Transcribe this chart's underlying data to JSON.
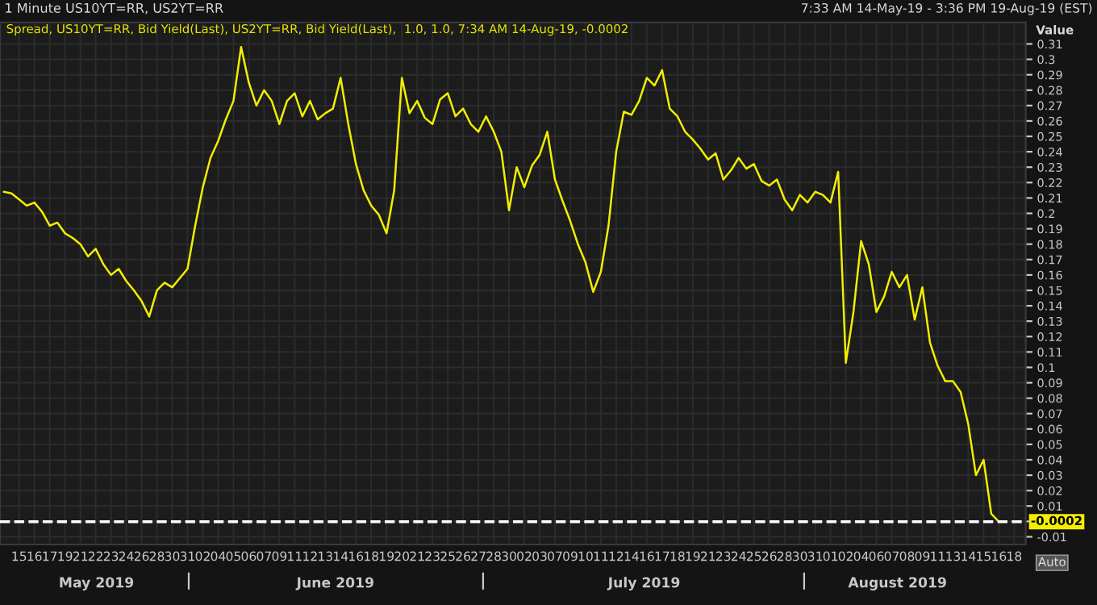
{
  "chart_data": {
    "type": "line",
    "title": "1 Minute US10YT=RR, US2YT=RR",
    "subtitle": "Spread, US10YT=RR, Bid Yield(Last), US2YT=RR, Bid Yield(Last),  1.0, 1.0, 7:34 AM 14-Aug-19, -0.0002",
    "ylabel": "Value",
    "annotations": [
      "7:33 AM 14-May-19 - 3:36 PM 19-Aug-19 (EST)",
      "Auto",
      "May 2019",
      "June 2019",
      "July 2019",
      "August 2019"
    ],
    "categories": [
      null,
      null,
      "15",
      null,
      "16",
      null,
      "17",
      null,
      "19",
      null,
      "21",
      null,
      "22",
      null,
      "23",
      null,
      "24",
      null,
      "26",
      null,
      "28",
      null,
      "30",
      null,
      "31",
      null,
      "02",
      null,
      "04",
      null,
      "05",
      null,
      "06",
      null,
      "07",
      null,
      "09",
      null,
      "11",
      null,
      "12",
      null,
      "13",
      null,
      "14",
      null,
      "16",
      null,
      "18",
      null,
      "19",
      null,
      "20",
      null,
      "21",
      null,
      "23",
      null,
      "25",
      null,
      "26",
      null,
      "27",
      null,
      "28",
      null,
      "30",
      null,
      "02",
      null,
      "03",
      null,
      "07",
      null,
      "09",
      null,
      "10",
      null,
      "11",
      null,
      "12",
      null,
      "14",
      null,
      "16",
      null,
      "17",
      null,
      "18",
      null,
      "19",
      null,
      "21",
      null,
      "23",
      null,
      "24",
      null,
      "25",
      null,
      "26",
      null,
      "28",
      null,
      "30",
      null,
      "31",
      null,
      "01",
      null,
      "02",
      null,
      "04",
      null,
      "06",
      null,
      "07",
      null,
      "08",
      null,
      "09",
      null,
      "11",
      null,
      "13",
      null,
      "14",
      null,
      "15",
      null,
      "16",
      null,
      "18",
      null
    ],
    "series": [
      {
        "color": "#f2ee00",
        "values": [
          0.214,
          0.213,
          0.209,
          0.205,
          0.207,
          0.201,
          0.192,
          0.194,
          0.187,
          0.184,
          0.18,
          0.172,
          0.177,
          0.167,
          0.16,
          0.164,
          0.156,
          0.15,
          0.143,
          0.133,
          0.15,
          0.155,
          0.152,
          0.158,
          0.164,
          0.192,
          0.217,
          0.236,
          0.247,
          0.261,
          0.273,
          0.308,
          0.285,
          0.27,
          0.28,
          0.273,
          0.258,
          0.273,
          0.278,
          0.263,
          0.273,
          0.261,
          0.265,
          0.268,
          0.288,
          0.258,
          0.232,
          0.215,
          0.205,
          0.199,
          0.187,
          0.215,
          0.288,
          0.265,
          0.273,
          0.262,
          0.258,
          0.274,
          0.278,
          0.263,
          0.268,
          0.258,
          0.253,
          0.263,
          0.253,
          0.24,
          0.202,
          0.23,
          0.217,
          0.231,
          0.238,
          0.253,
          0.222,
          0.208,
          0.195,
          0.18,
          0.168,
          0.149,
          0.162,
          0.192,
          0.24,
          0.266,
          0.264,
          0.273,
          0.288,
          0.283,
          0.293,
          0.268,
          0.263,
          0.253,
          0.248,
          0.242,
          0.235,
          0.239,
          0.222,
          0.228,
          0.236,
          0.229,
          0.232,
          0.221,
          0.218,
          0.222,
          0.209,
          0.202,
          0.212,
          0.207,
          0.214,
          0.212,
          0.207,
          0.227,
          0.103,
          0.136,
          0.182,
          0.167,
          0.136,
          0.146,
          0.162,
          0.152,
          0.16,
          0.131,
          0.152,
          0.116,
          0.101,
          0.091,
          0.091,
          0.084,
          0.063,
          0.03,
          0.04,
          0.005,
          -0.0002,
          null,
          null,
          null
        ]
      }
    ],
    "ylim": [
      -0.015,
      0.324
    ],
    "yticks": [
      -0.01,
      {
        "value": 0,
        "label": null
      },
      0.01,
      0.02,
      0.03,
      0.04,
      0.05,
      0.06,
      0.07,
      0.08,
      0.09,
      {
        "value": 0.1,
        "label": "0.1"
      },
      0.11,
      0.12,
      0.13,
      0.14,
      0.15,
      0.16,
      0.17,
      0.18,
      0.19,
      {
        "value": 0.2,
        "label": "0.2"
      },
      0.21,
      0.22,
      0.23,
      0.24,
      0.25,
      0.26,
      0.27,
      0.28,
      0.29,
      {
        "value": 0.3,
        "label": "0.3"
      },
      0.31
    ],
    "ref_lines": [
      {
        "axis": "y",
        "value": -0.0002,
        "label": "-0.0002",
        "color": "#ffffff",
        "line_style": "dashed"
      }
    ],
    "grid": true,
    "line_style": "solid"
  }
}
